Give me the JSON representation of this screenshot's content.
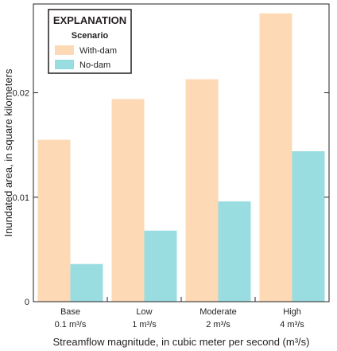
{
  "chart_data": {
    "type": "bar",
    "categories": [
      {
        "name": "Base",
        "flow": "0.1 m³/s"
      },
      {
        "name": "Low",
        "flow": "1 m³/s"
      },
      {
        "name": "Moderate",
        "flow": "2 m³/s"
      },
      {
        "name": "High",
        "flow": "4 m³/s"
      }
    ],
    "series": [
      {
        "name": "With-dam",
        "color": "#fdd9b5",
        "values": [
          0.0155,
          0.0194,
          0.0213,
          0.0276
        ]
      },
      {
        "name": "No-dam",
        "color": "#99dde0",
        "values": [
          0.0036,
          0.0068,
          0.0096,
          0.0144
        ]
      }
    ],
    "xlabel": "Streamflow magnitude, in cubic meter per second (m³/s)",
    "ylabel": "Inundated area, in square kilometers",
    "ylim": [
      0,
      0.0285
    ],
    "yticks": [
      {
        "value": 0,
        "label": "0"
      },
      {
        "value": 0.01,
        "label": "0.01"
      },
      {
        "value": 0.02,
        "label": "0.02"
      }
    ],
    "legend": {
      "title": "EXPLANATION",
      "subtitle": "Scenario",
      "placement": "top-left"
    },
    "grid": false
  }
}
